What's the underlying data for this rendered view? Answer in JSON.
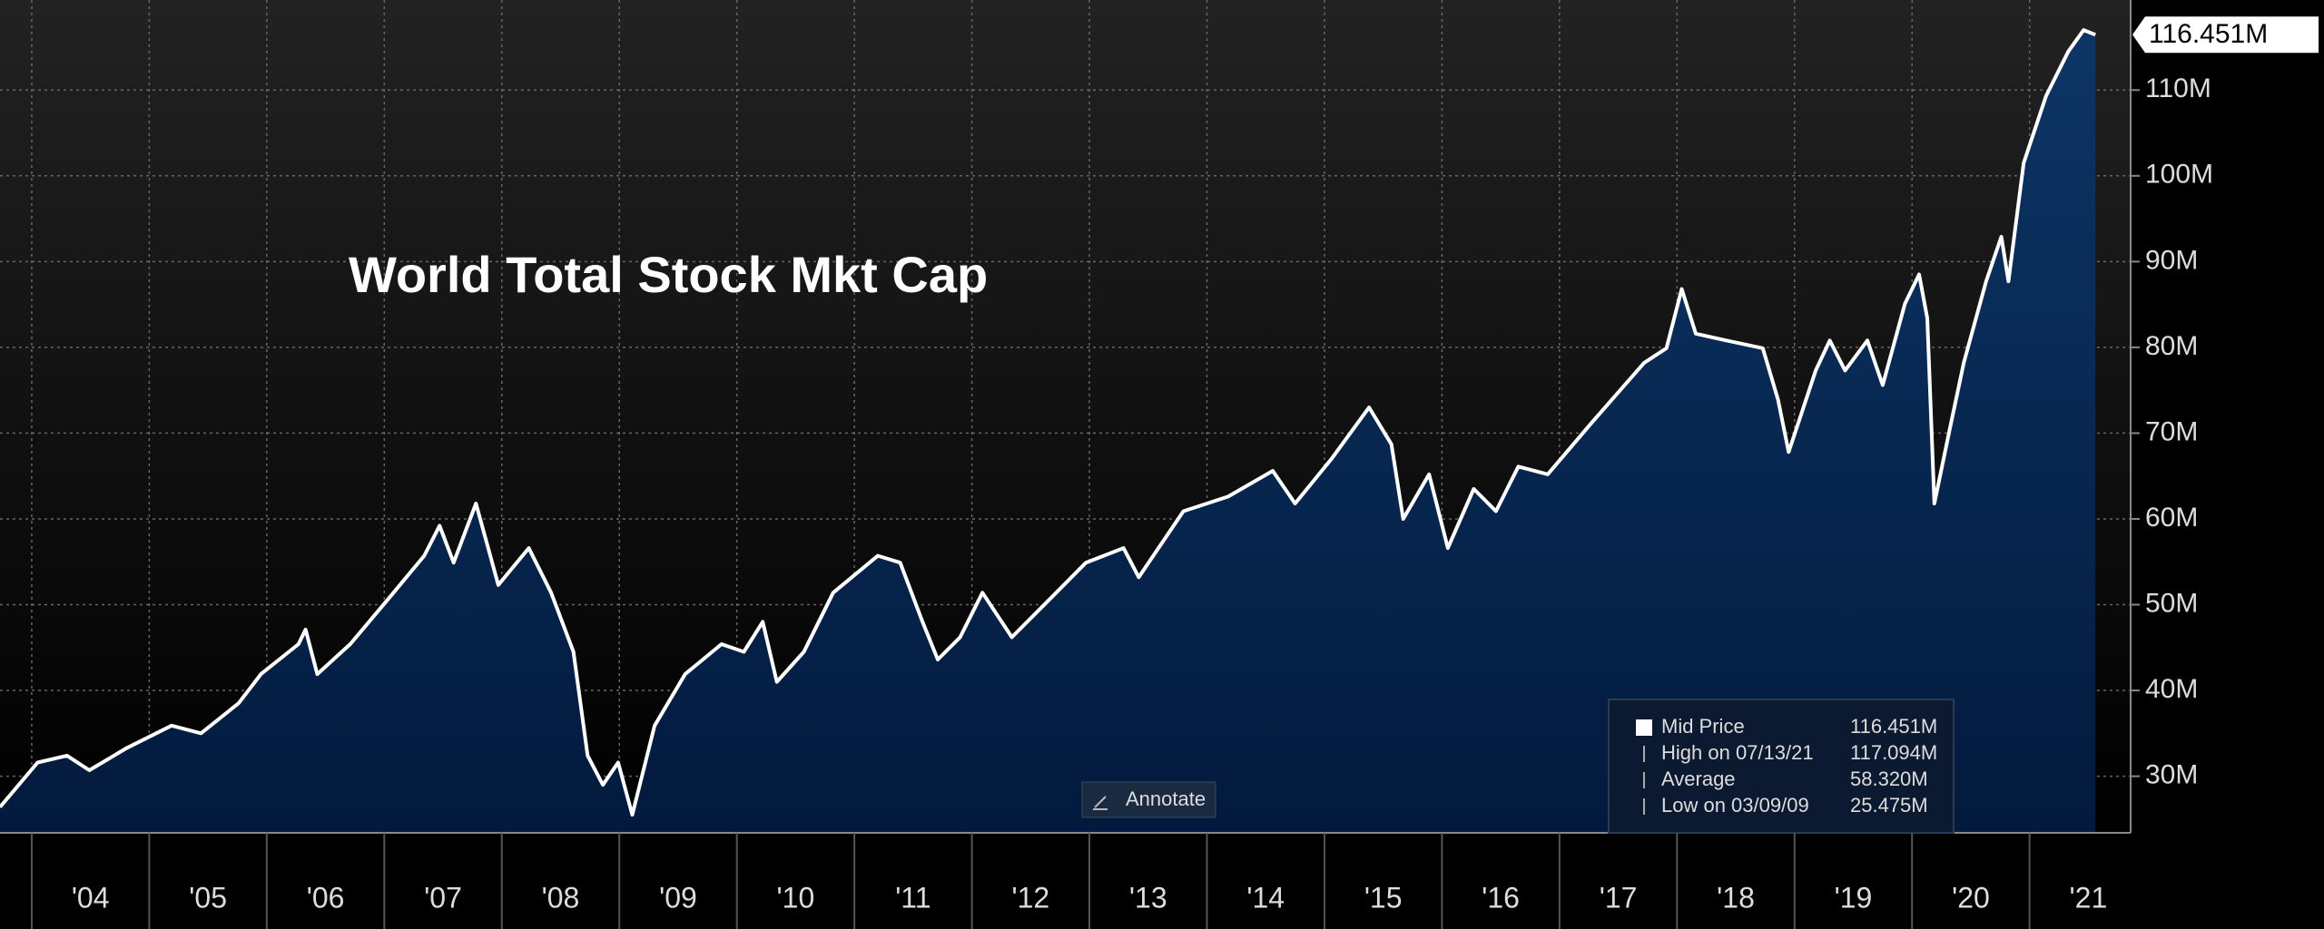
{
  "chart_data": {
    "type": "area",
    "title": "World Total Stock Mkt Cap",
    "series": [
      {
        "name": "Mid Price",
        "color": "#ffffff",
        "x": [
          2003.73,
          2004.05,
          2004.3,
          2004.49,
          2004.81,
          2005.19,
          2005.44,
          2005.76,
          2005.95,
          2006.27,
          2006.33,
          2006.43,
          2006.71,
          2007.03,
          2007.34,
          2007.47,
          2007.59,
          2007.78,
          2007.97,
          2008.23,
          2008.42,
          2008.61,
          2008.73,
          2008.86,
          2008.99,
          2009.11,
          2009.3,
          2009.56,
          2009.87,
          2010.06,
          2010.22,
          2010.34,
          2010.57,
          2010.82,
          2011.2,
          2011.39,
          2011.58,
          2011.71,
          2011.9,
          2012.09,
          2012.34,
          2012.66,
          2012.97,
          2013.29,
          2013.42,
          2013.8,
          2014.18,
          2014.56,
          2014.75,
          2015.06,
          2015.38,
          2015.57,
          2015.67,
          2015.89,
          2016.05,
          2016.27,
          2016.46,
          2016.65,
          2016.9,
          2017.28,
          2017.72,
          2017.91,
          2018.04,
          2018.16,
          2018.42,
          2018.73,
          2018.86,
          2018.95,
          2019.18,
          2019.3,
          2019.43,
          2019.62,
          2019.75,
          2019.94,
          2020.06,
          2020.13,
          2020.19,
          2020.32,
          2020.44,
          2020.63,
          2020.76,
          2020.82,
          2020.95,
          2021.14,
          2021.33,
          2021.46,
          2021.56
        ],
        "values": [
          26.4,
          31.6,
          32.4,
          30.7,
          33.3,
          35.9,
          35.0,
          38.5,
          41.9,
          45.4,
          47.1,
          41.9,
          45.4,
          50.6,
          55.7,
          59.2,
          54.9,
          61.8,
          52.3,
          56.6,
          51.4,
          44.5,
          32.4,
          29.0,
          31.6,
          25.5,
          35.9,
          41.9,
          45.4,
          44.5,
          48.0,
          41.0,
          44.5,
          51.4,
          55.7,
          54.9,
          48.0,
          43.6,
          46.2,
          51.4,
          46.2,
          50.6,
          54.9,
          56.6,
          53.2,
          60.9,
          62.6,
          65.6,
          61.8,
          67.0,
          73.0,
          68.7,
          60.0,
          65.2,
          56.6,
          63.5,
          60.9,
          66.1,
          65.2,
          71.3,
          78.2,
          79.9,
          86.8,
          81.6,
          80.8,
          79.9,
          73.9,
          67.8,
          77.3,
          80.8,
          77.3,
          80.8,
          75.6,
          85.1,
          88.5,
          83.4,
          61.8,
          70.4,
          78.2,
          87.7,
          92.9,
          87.7,
          101.5,
          109.3,
          114.5,
          117.0,
          116.451
        ]
      }
    ],
    "xlim": [
      2003.73,
      2021.86
    ],
    "xticks": [
      {
        "value": 2004,
        "label": "'04"
      },
      {
        "value": 2005,
        "label": "'05"
      },
      {
        "value": 2006,
        "label": "'06"
      },
      {
        "value": 2007,
        "label": "'07"
      },
      {
        "value": 2008,
        "label": "'08"
      },
      {
        "value": 2009,
        "label": "'09"
      },
      {
        "value": 2010,
        "label": "'10"
      },
      {
        "value": 2011,
        "label": "'11"
      },
      {
        "value": 2012,
        "label": "'12"
      },
      {
        "value": 2013,
        "label": "'13"
      },
      {
        "value": 2014,
        "label": "'14"
      },
      {
        "value": 2015,
        "label": "'15"
      },
      {
        "value": 2016,
        "label": "'16"
      },
      {
        "value": 2017,
        "label": "'17"
      },
      {
        "value": 2018,
        "label": "'18"
      },
      {
        "value": 2019,
        "label": "'19"
      },
      {
        "value": 2020,
        "label": "'20"
      },
      {
        "value": 2021,
        "label": "'21"
      }
    ],
    "ylim": [
      23.4,
      120.5
    ],
    "yticks": [
      {
        "value": 30,
        "label": "30M"
      },
      {
        "value": 40,
        "label": "40M"
      },
      {
        "value": 50,
        "label": "50M"
      },
      {
        "value": 60,
        "label": "60M"
      },
      {
        "value": 70,
        "label": "70M"
      },
      {
        "value": 80,
        "label": "80M"
      },
      {
        "value": 90,
        "label": "90M"
      },
      {
        "value": 100,
        "label": "100M"
      },
      {
        "value": 110,
        "label": "110M"
      }
    ],
    "grid": true,
    "last_price": {
      "value": 116.451,
      "label": "116.451M"
    },
    "legend": [
      {
        "label": "Mid Price",
        "value_label": "116.451M"
      },
      {
        "label": "High on 07/13/21",
        "value_label": "117.094M"
      },
      {
        "label": "Average",
        "value_label": "58.320M"
      },
      {
        "label": "Low on 03/09/09",
        "value_label": "25.475M"
      }
    ],
    "button": "Annotate"
  }
}
